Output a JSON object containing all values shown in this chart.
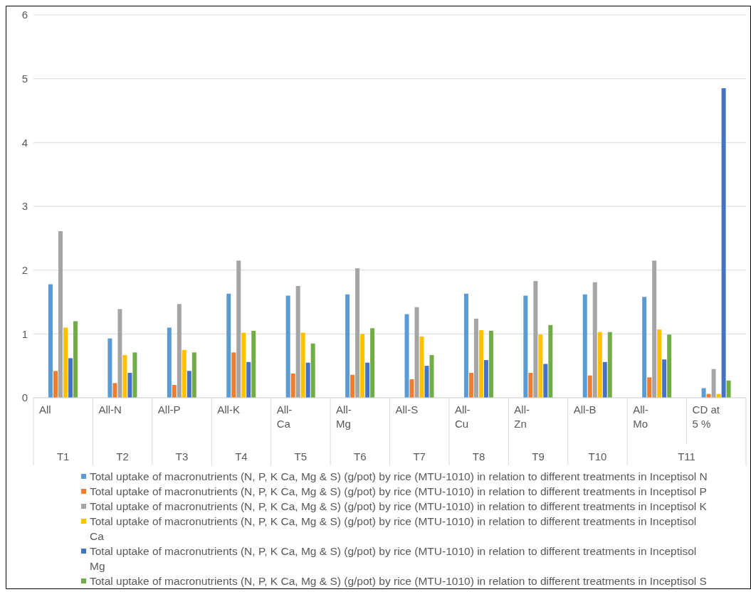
{
  "chart_data": {
    "type": "bar",
    "categories": [
      "All",
      "All-N",
      "All-P",
      "All-K",
      "All-Ca",
      "All-Mg",
      "All-S",
      "All-Cu",
      "All-Zn",
      "All-B",
      "All-Mo",
      "CD at 5 %"
    ],
    "series": [
      {
        "name": "Total uptake of macronutrients (N, P, K Ca, Mg & S) (g/pot) by rice (MTU-1010) in relation to different treatments in Inceptisol N",
        "color": "#5b9bd5",
        "values": [
          1.78,
          0.93,
          1.1,
          1.63,
          1.6,
          1.62,
          1.31,
          1.63,
          1.6,
          1.62,
          1.58,
          0.15
        ]
      },
      {
        "name": "Total uptake of macronutrients (N, P, K Ca, Mg & S) (g/pot) by rice (MTU-1010) in relation to different treatments in Inceptisol P",
        "color": "#ed7d31",
        "values": [
          0.42,
          0.23,
          0.2,
          0.71,
          0.38,
          0.36,
          0.29,
          0.39,
          0.39,
          0.35,
          0.32,
          0.06
        ]
      },
      {
        "name": "Total uptake of macronutrients (N, P, K Ca, Mg & S) (g/pot) by rice (MTU-1010) in relation to different treatments in Inceptisol K",
        "color": "#a5a5a5",
        "values": [
          2.61,
          1.39,
          1.47,
          2.15,
          1.75,
          2.03,
          1.42,
          1.24,
          1.83,
          1.81,
          2.15,
          0.45
        ]
      },
      {
        "name": "Total uptake of macronutrients (N, P, K Ca, Mg & S) (g/pot) by rice (MTU-1010) in relation to different treatments in Inceptisol Ca",
        "color": "#ffc000",
        "values": [
          1.1,
          0.67,
          0.75,
          1.02,
          1.02,
          1.0,
          0.96,
          1.06,
          0.99,
          1.03,
          1.07,
          0.06
        ]
      },
      {
        "name": "Total uptake of macronutrients (N, P, K Ca, Mg & S) (g/pot) by rice (MTU-1010) in relation to different treatments in Inceptisol Mg",
        "color": "#4472c4",
        "values": [
          0.62,
          0.39,
          0.42,
          0.56,
          0.55,
          0.55,
          0.5,
          0.59,
          0.53,
          0.56,
          0.6,
          4.85
        ]
      },
      {
        "name": "Total uptake of macronutrients (N, P, K Ca, Mg & S) (g/pot) by rice (MTU-1010) in relation to different treatments in Inceptisol S",
        "color": "#70ad47",
        "values": [
          1.2,
          0.71,
          0.71,
          1.05,
          0.85,
          1.09,
          0.67,
          1.05,
          1.14,
          1.03,
          0.99,
          0.27
        ]
      }
    ],
    "annotations": [
      "T1",
      "T2",
      "T3",
      "T4",
      "T5",
      "T6",
      "T7",
      "T8",
      "T9",
      "T10",
      "T11"
    ],
    "ylim": [
      0,
      6
    ],
    "yticks": [
      0,
      1,
      2,
      3,
      4,
      5,
      6
    ],
    "grid": "y",
    "legend": "bottom"
  }
}
